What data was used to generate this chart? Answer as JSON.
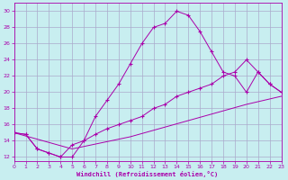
{
  "xlabel": "Windchill (Refroidissement éolien,°C)",
  "bg_color": "#c8eef0",
  "line_color": "#aa00aa",
  "grid_color": "#aaaacc",
  "xlim": [
    0,
    23
  ],
  "ylim": [
    11.5,
    31
  ],
  "xticks": [
    0,
    1,
    2,
    3,
    4,
    5,
    6,
    7,
    8,
    9,
    10,
    11,
    12,
    13,
    14,
    15,
    16,
    17,
    18,
    19,
    20,
    21,
    22,
    23
  ],
  "yticks": [
    12,
    14,
    16,
    18,
    20,
    22,
    24,
    26,
    28,
    30
  ],
  "line1_x": [
    0,
    1,
    2,
    3,
    4,
    5,
    6,
    7,
    8,
    9,
    10,
    11,
    12,
    13,
    14,
    15,
    16,
    17,
    18,
    19,
    20,
    21,
    22,
    23
  ],
  "line1_y": [
    15.0,
    14.8,
    13.0,
    12.5,
    12.0,
    12.0,
    14.0,
    17.0,
    19.0,
    21.0,
    23.5,
    26.0,
    28.0,
    28.5,
    30.0,
    29.5,
    27.5,
    25.0,
    22.5,
    22.0,
    20.0,
    22.5,
    21.0,
    20.0
  ],
  "line2_x": [
    0,
    1,
    2,
    3,
    4,
    5,
    6,
    7,
    8,
    9,
    10,
    11,
    12,
    13,
    14,
    15,
    16,
    17,
    18,
    19,
    20,
    21,
    22,
    23
  ],
  "line2_y": [
    15.0,
    14.8,
    13.0,
    12.5,
    12.0,
    13.5,
    14.0,
    14.8,
    15.5,
    16.0,
    16.5,
    17.0,
    18.0,
    18.5,
    19.5,
    20.0,
    20.5,
    21.0,
    22.0,
    22.5,
    24.0,
    22.5,
    21.0,
    20.0
  ],
  "line3_x": [
    0,
    5,
    10,
    15,
    20,
    23
  ],
  "line3_y": [
    15.0,
    13.0,
    14.5,
    16.5,
    18.5,
    19.5
  ]
}
